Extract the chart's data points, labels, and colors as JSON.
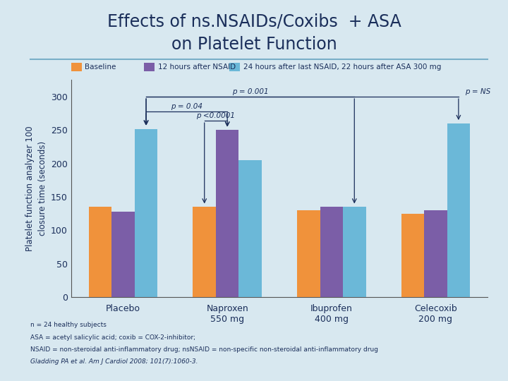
{
  "title_line1": "Effects of ns.NSAIDs/Coxibs  + ASA",
  "title_line2": "on Platelet Function",
  "background_color": "#d8e8f0",
  "title_color": "#1a2e5a",
  "groups": [
    "Placebo",
    "Naproxen\n550 mg",
    "Ibuprofen\n400 mg",
    "Celecoxib\n200 mg"
  ],
  "series_labels": [
    "Baseline",
    "12 hours after NSAID",
    "24 hours after last NSAID, 22 hours after ASA 300 mg"
  ],
  "series_colors": [
    "#f0923b",
    "#7b5ea7",
    "#6bb8d8"
  ],
  "values": {
    "Baseline": [
      135,
      135,
      130,
      125
    ],
    "12h": [
      128,
      250,
      135,
      130
    ],
    "24h": [
      252,
      205,
      135,
      260
    ]
  },
  "ylim": [
    0,
    325
  ],
  "yticks": [
    0,
    50,
    100,
    150,
    200,
    250,
    300
  ],
  "ylabel": "Platelet function analyzer 100\nclosure time (seconds)",
  "ylabel_color": "#1a2e5a",
  "significance": {
    "p04_label": "p = 0.04",
    "p001_label": "p = 0.001",
    "p00001_label": "p <0.0001",
    "pNS_label": "p = NS"
  },
  "footnote_lines": [
    "n = 24 healthy subjects",
    "ASA = acetyl salicylic acid; coxib = COX-2-inhibitor;",
    "NSAID = non-steroidal anti-inflammatory drug; nsNSAID = non-specific non-steroidal anti-inflammatory drug",
    "Gladding PA et al. Am J Cardiol 2008; 101(7):1060-3."
  ],
  "footnote_color": "#1a2e5a",
  "axis_color": "#555555",
  "tick_color": "#1a2e5a",
  "bar_width": 0.22,
  "divider_color": "#7aafc8"
}
